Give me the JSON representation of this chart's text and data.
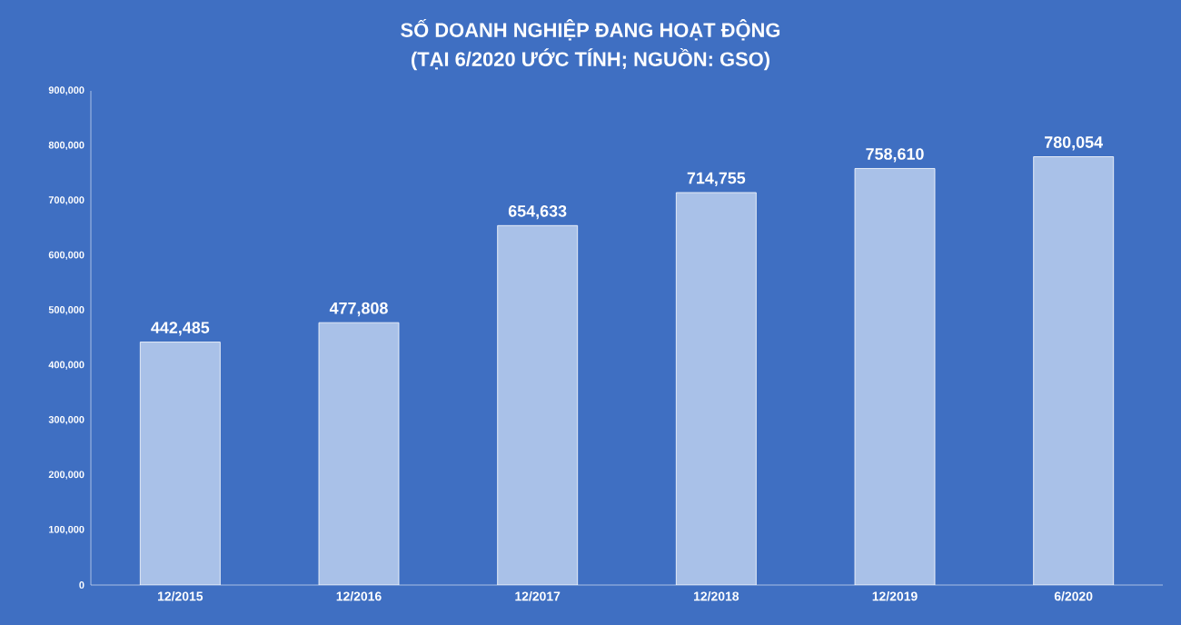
{
  "chart_data": {
    "type": "bar",
    "title": "SỐ DOANH NGHIỆP ĐANG HOẠT ĐỘNG",
    "subtitle": "(TẠI 6/2020 ƯỚC TÍNH; NGUỒN: GSO)",
    "categories": [
      "12/2015",
      "12/2016",
      "12/2017",
      "12/2018",
      "12/2019",
      "6/2020"
    ],
    "values": [
      442485,
      477808,
      654633,
      714755,
      758610,
      780054
    ],
    "value_labels": [
      "442,485",
      "477,808",
      "654,633",
      "714,755",
      "758,610",
      "780,054"
    ],
    "color": "#a9c1e8",
    "ylim": [
      0,
      900000
    ],
    "yticks": [
      0,
      {
        "value": 100000,
        "label": "100,000"
      },
      {
        "value": 200000,
        "label": "200,000"
      },
      {
        "value": 300000,
        "label": "300,000"
      },
      {
        "value": 400000,
        "label": "400,000"
      },
      {
        "value": 500000,
        "label": "500,000"
      },
      {
        "value": 600000,
        "label": "600,000"
      },
      {
        "value": 700000,
        "label": "700,000"
      },
      {
        "value": 800000,
        "label": "800,000"
      },
      {
        "value": 900000,
        "label": "900,000"
      }
    ],
    "grid": false
  }
}
